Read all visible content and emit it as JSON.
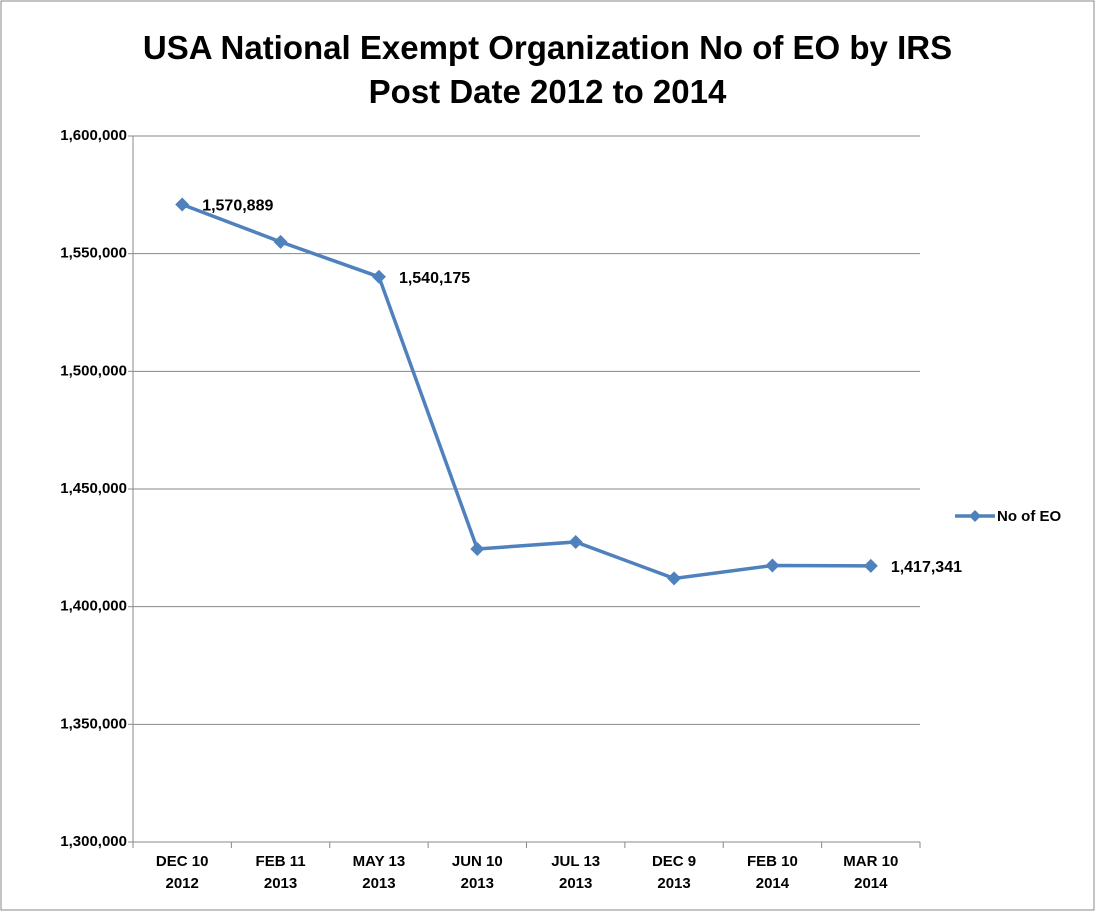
{
  "chart_data": {
    "type": "line",
    "title": "USA National Exempt Organization No of EO by IRS Post Date 2012 to 2014",
    "categories": [
      [
        "DEC 10",
        "2012"
      ],
      [
        "FEB 11",
        "2013"
      ],
      [
        "MAY 13",
        "2013"
      ],
      [
        "JUN 10",
        "2013"
      ],
      [
        "JUL 13",
        "2013"
      ],
      [
        "DEC 9",
        "2013"
      ],
      [
        "FEB 10",
        "2014"
      ],
      [
        "MAR 10",
        "2014"
      ]
    ],
    "series": [
      {
        "name": "No of EO",
        "color": "#4f81bd",
        "values": [
          1570889,
          1555000,
          1540175,
          1424500,
          1427500,
          1412000,
          1417500,
          1417341
        ],
        "value_labels": [
          "1,570,889",
          null,
          "1,540,175",
          null,
          null,
          null,
          null,
          "1,417,341"
        ],
        "value_label_color": "#ff0000"
      }
    ],
    "ylim": [
      1300000,
      1600000
    ],
    "yticks": [
      {
        "value": 1300000,
        "label": "1,300,000"
      },
      {
        "value": 1350000,
        "label": "1,350,000"
      },
      {
        "value": 1400000,
        "label": "1,400,000"
      },
      {
        "value": 1450000,
        "label": "1,450,000"
      },
      {
        "value": 1500000,
        "label": "1,500,000"
      },
      {
        "value": 1550000,
        "label": "1,550,000"
      },
      {
        "value": 1600000,
        "label": "1,600,000"
      }
    ],
    "grid": true,
    "legend": "right"
  }
}
